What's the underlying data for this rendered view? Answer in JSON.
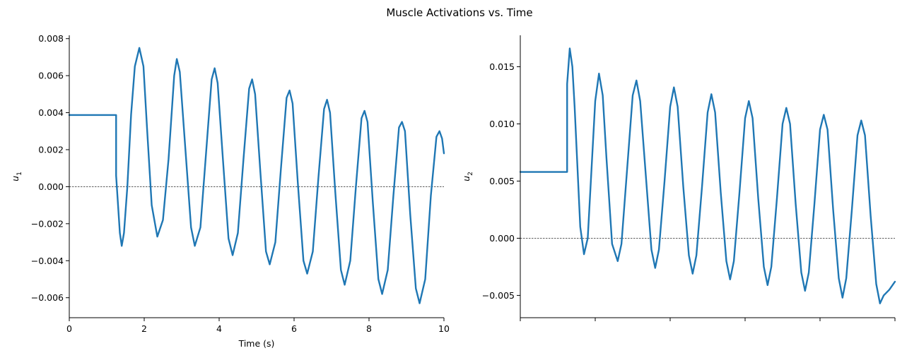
{
  "figure": {
    "title": "Muscle Activations vs. Time"
  },
  "colors": {
    "series": "#1f77b4",
    "axis": "#000000",
    "zero_line": "#000000"
  },
  "chart_data": [
    {
      "type": "line",
      "xlabel": "Time (s)",
      "ylabel": "u1",
      "ylabel_base": "u",
      "ylabel_sub": "1",
      "xlim": [
        0,
        10
      ],
      "ylim": [
        -0.00708,
        0.00818
      ],
      "x_ticks": [
        0,
        2,
        4,
        6,
        8,
        10
      ],
      "x_tick_labels": [
        "0",
        "2",
        "4",
        "6",
        "8",
        "10"
      ],
      "y_ticks": [
        -0.006,
        -0.004,
        -0.002,
        0.0,
        0.002,
        0.004,
        0.006,
        0.008
      ],
      "y_tick_labels": [
        "−0.006",
        "−0.004",
        "−0.002",
        "0.000",
        "0.002",
        "0.004",
        "0.006",
        "0.008"
      ],
      "zero_line": true,
      "grid": false,
      "series": [
        {
          "x": [
            0,
            1.25,
            1.25,
            1.35,
            1.4,
            1.46,
            1.55,
            1.65,
            1.75,
            1.87,
            1.98,
            2.08,
            2.2,
            2.35,
            2.5,
            2.65,
            2.8,
            2.87,
            2.95,
            3.1,
            3.25,
            3.35,
            3.5,
            3.65,
            3.8,
            3.88,
            3.96,
            4.1,
            4.25,
            4.36,
            4.5,
            4.65,
            4.8,
            4.88,
            4.96,
            5.1,
            5.25,
            5.35,
            5.5,
            5.65,
            5.8,
            5.88,
            5.96,
            6.1,
            6.25,
            6.35,
            6.5,
            6.65,
            6.8,
            6.88,
            6.96,
            7.1,
            7.25,
            7.35,
            7.5,
            7.65,
            7.8,
            7.88,
            7.96,
            8.1,
            8.25,
            8.35,
            8.5,
            8.65,
            8.8,
            8.88,
            8.96,
            9.1,
            9.25,
            9.35,
            9.5,
            9.65,
            9.8,
            9.88,
            9.95,
            10.0
          ],
          "y": [
            0.00387,
            0.00387,
            0.0006,
            -0.0025,
            -0.0032,
            -0.0025,
            0.0,
            0.0039,
            0.0065,
            0.0075,
            0.0065,
            0.003,
            -0.001,
            -0.0027,
            -0.0018,
            0.0015,
            0.006,
            0.0069,
            0.0062,
            0.002,
            -0.0022,
            -0.0032,
            -0.0022,
            0.0018,
            0.0058,
            0.0064,
            0.0056,
            0.0015,
            -0.0028,
            -0.0037,
            -0.0025,
            0.0015,
            0.0053,
            0.0058,
            0.005,
            0.0008,
            -0.0035,
            -0.0042,
            -0.003,
            0.001,
            0.0048,
            0.0052,
            0.0045,
            0.0002,
            -0.004,
            -0.0047,
            -0.0035,
            0.0005,
            0.0042,
            0.0047,
            0.004,
            -0.0003,
            -0.0045,
            -0.0053,
            -0.004,
            0.0,
            0.0037,
            0.0041,
            0.0035,
            -0.0008,
            -0.005,
            -0.0058,
            -0.0045,
            -0.0005,
            0.0032,
            0.0035,
            0.003,
            -0.0015,
            -0.0055,
            -0.0063,
            -0.005,
            -0.0005,
            0.0027,
            0.003,
            0.0026,
            0.0018
          ]
        }
      ]
    },
    {
      "type": "line",
      "xlabel": "",
      "ylabel": "u2",
      "ylabel_base": "u",
      "ylabel_sub": "2",
      "xlim": [
        0,
        10
      ],
      "ylim": [
        -0.00695,
        0.01775
      ],
      "x_ticks": [
        0,
        2,
        4,
        6,
        8,
        10
      ],
      "x_tick_labels": [],
      "y_ticks": [
        -0.005,
        0.0,
        0.005,
        0.01,
        0.015
      ],
      "y_tick_labels": [
        "−0.005",
        "0.000",
        "0.005",
        "0.010",
        "0.015"
      ],
      "zero_line": true,
      "grid": false,
      "series": [
        {
          "x": [
            0,
            1.25,
            1.25,
            1.32,
            1.39,
            1.45,
            1.5,
            1.6,
            1.7,
            1.8,
            1.9,
            2.0,
            2.1,
            2.2,
            2.3,
            2.45,
            2.6,
            2.7,
            2.85,
            3.0,
            3.1,
            3.2,
            3.35,
            3.5,
            3.6,
            3.7,
            3.85,
            4.0,
            4.1,
            4.2,
            4.35,
            4.5,
            4.6,
            4.7,
            4.85,
            5.0,
            5.1,
            5.2,
            5.35,
            5.5,
            5.6,
            5.7,
            5.85,
            6.0,
            6.1,
            6.2,
            6.35,
            6.5,
            6.6,
            6.7,
            6.85,
            7.0,
            7.1,
            7.2,
            7.35,
            7.5,
            7.6,
            7.7,
            7.85,
            8.0,
            8.1,
            8.2,
            8.35,
            8.5,
            8.6,
            8.7,
            8.85,
            9.0,
            9.1,
            9.2,
            9.35,
            9.5,
            9.6,
            9.7,
            9.85,
            10.0
          ],
          "y": [
            0.0058,
            0.0058,
            0.0135,
            0.0166,
            0.015,
            0.0115,
            0.008,
            0.001,
            -0.0014,
            0.0,
            0.006,
            0.012,
            0.0144,
            0.0125,
            0.007,
            -0.0005,
            -0.002,
            -0.0005,
            0.006,
            0.0125,
            0.0138,
            0.012,
            0.0055,
            -0.001,
            -0.0026,
            -0.001,
            0.005,
            0.0115,
            0.0132,
            0.0115,
            0.0045,
            -0.0015,
            -0.0031,
            -0.0015,
            0.0045,
            0.011,
            0.0126,
            0.011,
            0.004,
            -0.002,
            -0.0036,
            -0.002,
            0.004,
            0.0105,
            0.012,
            0.0105,
            0.0035,
            -0.0025,
            -0.0041,
            -0.0025,
            0.0035,
            0.01,
            0.0114,
            0.01,
            0.003,
            -0.003,
            -0.0046,
            -0.003,
            0.003,
            0.0095,
            0.0108,
            0.0095,
            0.0025,
            -0.0035,
            -0.0052,
            -0.0035,
            0.0025,
            0.009,
            0.0103,
            0.009,
            0.002,
            -0.004,
            -0.0057,
            -0.005,
            -0.0045,
            -0.0038
          ]
        }
      ]
    }
  ]
}
